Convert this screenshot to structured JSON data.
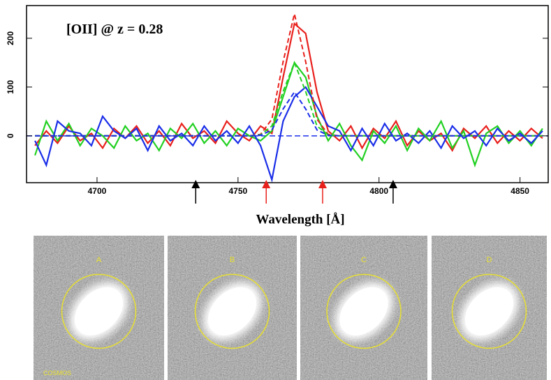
{
  "chart_data": {
    "type": "line",
    "annotation": "[OII] @ z = 0.28",
    "x_label": "Wavelength [Å]",
    "x": [
      4678,
      4682,
      4686,
      4690,
      4694,
      4698,
      4702,
      4706,
      4710,
      4714,
      4718,
      4722,
      4726,
      4730,
      4734,
      4738,
      4742,
      4746,
      4750,
      4754,
      4758,
      4762,
      4766,
      4770,
      4774,
      4778,
      4782,
      4786,
      4790,
      4794,
      4798,
      4802,
      4806,
      4810,
      4814,
      4818,
      4822,
      4826,
      4830,
      4834,
      4838,
      4842,
      4846,
      4850,
      4854,
      4858
    ],
    "series": [
      {
        "color": "#e8201c",
        "values": [
          -20,
          10,
          -15,
          20,
          -10,
          5,
          -25,
          15,
          -5,
          20,
          -15,
          10,
          -20,
          25,
          -5,
          10,
          -15,
          30,
          5,
          -10,
          20,
          5,
          120,
          230,
          210,
          90,
          10,
          -10,
          20,
          -25,
          15,
          -5,
          30,
          -20,
          10,
          -10,
          5,
          -30,
          15,
          -5,
          20,
          -15,
          10,
          -10,
          15,
          -5
        ]
      },
      {
        "color": "#22d022",
        "values": [
          -40,
          30,
          -10,
          25,
          -20,
          15,
          0,
          -25,
          20,
          -10,
          5,
          -30,
          15,
          -5,
          25,
          -15,
          10,
          -20,
          15,
          0,
          -10,
          10,
          80,
          150,
          120,
          40,
          -10,
          25,
          -20,
          -50,
          10,
          -15,
          20,
          -30,
          15,
          -10,
          30,
          -25,
          10,
          -60,
          5,
          20,
          -15,
          10,
          -20,
          15
        ]
      },
      {
        "color": "#1a2ee8",
        "values": [
          -10,
          -60,
          30,
          10,
          5,
          -20,
          40,
          10,
          -5,
          15,
          -30,
          20,
          -10,
          5,
          -20,
          20,
          -10,
          10,
          -15,
          20,
          -20,
          -90,
          30,
          80,
          100,
          60,
          20,
          10,
          -30,
          15,
          -20,
          25,
          -10,
          5,
          -15,
          10,
          -25,
          20,
          -5,
          10,
          -20,
          15,
          -10,
          5,
          -15,
          10
        ]
      },
      {
        "color": "#e8201c",
        "dashed": true,
        "values": [
          0,
          0,
          0,
          0,
          0,
          0,
          0,
          0,
          0,
          0,
          0,
          0,
          0,
          0,
          0,
          0,
          0,
          0,
          0,
          0,
          3,
          34,
          152,
          250,
          152,
          34,
          3,
          0,
          0,
          0,
          0,
          0,
          0,
          0,
          0,
          0,
          0,
          0,
          0,
          0,
          0,
          0,
          0,
          0,
          0,
          0
        ]
      },
      {
        "color": "#22d022",
        "dashed": true,
        "values": [
          0,
          0,
          0,
          0,
          0,
          0,
          0,
          0,
          0,
          0,
          0,
          0,
          0,
          0,
          0,
          0,
          0,
          0,
          0,
          0,
          2,
          20,
          91,
          150,
          91,
          20,
          2,
          0,
          0,
          0,
          0,
          0,
          0,
          0,
          0,
          0,
          0,
          0,
          0,
          0,
          0,
          0,
          0,
          0,
          0,
          0
        ]
      },
      {
        "color": "#1a2ee8",
        "dashed": true,
        "values": [
          0,
          0,
          0,
          0,
          0,
          0,
          0,
          0,
          0,
          0,
          0,
          0,
          0,
          0,
          0,
          0,
          0,
          0,
          0,
          0,
          1,
          12,
          55,
          90,
          55,
          12,
          1,
          0,
          0,
          0,
          0,
          0,
          0,
          0,
          0,
          0,
          0,
          0,
          0,
          0,
          0,
          0,
          0,
          0,
          0,
          0
        ]
      }
    ],
    "baseline_color": "#1a2ee8",
    "arrows": [
      {
        "x": 4735,
        "color": "#000000"
      },
      {
        "x": 4760,
        "color": "#e8201c"
      },
      {
        "x": 4780,
        "color": "#e8201c"
      },
      {
        "x": 4805,
        "color": "#000000"
      }
    ],
    "xlim": [
      4675,
      4860
    ],
    "xticks": [
      4700,
      4750,
      4800,
      4850
    ],
    "ylim": [
      -96,
      267
    ],
    "yticks": [
      0,
      100,
      200
    ]
  },
  "panels": {
    "labels": [
      "A",
      "B",
      "C",
      "D"
    ],
    "badge": "COSMOS"
  }
}
